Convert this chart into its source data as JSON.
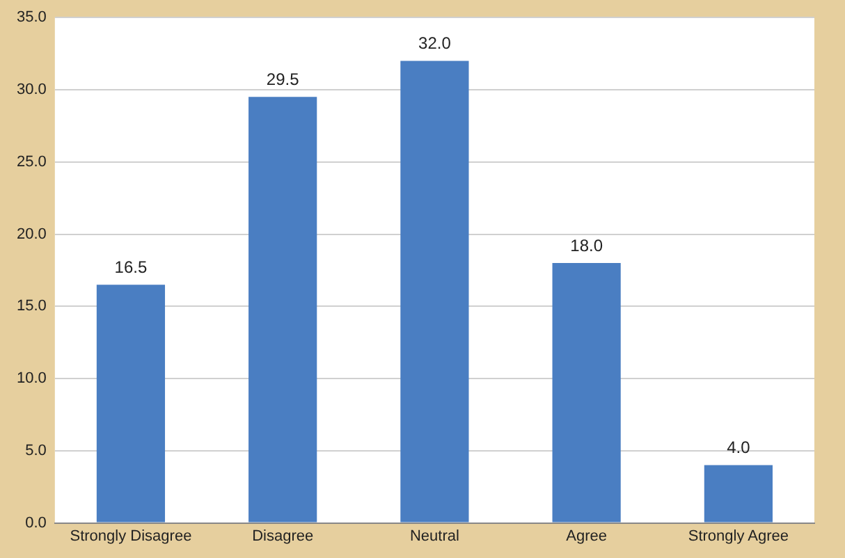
{
  "chart_data": {
    "type": "bar",
    "categories": [
      "Strongly Disagree",
      "Disagree",
      "Neutral",
      "Agree",
      "Strongly Agree"
    ],
    "values": [
      16.5,
      29.5,
      32.0,
      18.0,
      4.0
    ],
    "value_labels": [
      "16.5",
      "29.5",
      "32.0",
      "18.0",
      "4.0"
    ],
    "color": "#4a7ec2",
    "ylim": [
      0,
      35
    ],
    "yticks": [
      {
        "value": 0,
        "label": "0.0"
      },
      {
        "value": 5,
        "label": "5.0"
      },
      {
        "value": 10,
        "label": "10.0"
      },
      {
        "value": 15,
        "label": "15.0"
      },
      {
        "value": 20,
        "label": "20.0"
      },
      {
        "value": 25,
        "label": "25.0"
      },
      {
        "value": 30,
        "label": "30.0"
      },
      {
        "value": 35,
        "label": "35.0"
      }
    ],
    "grid": "y",
    "legend": false
  }
}
